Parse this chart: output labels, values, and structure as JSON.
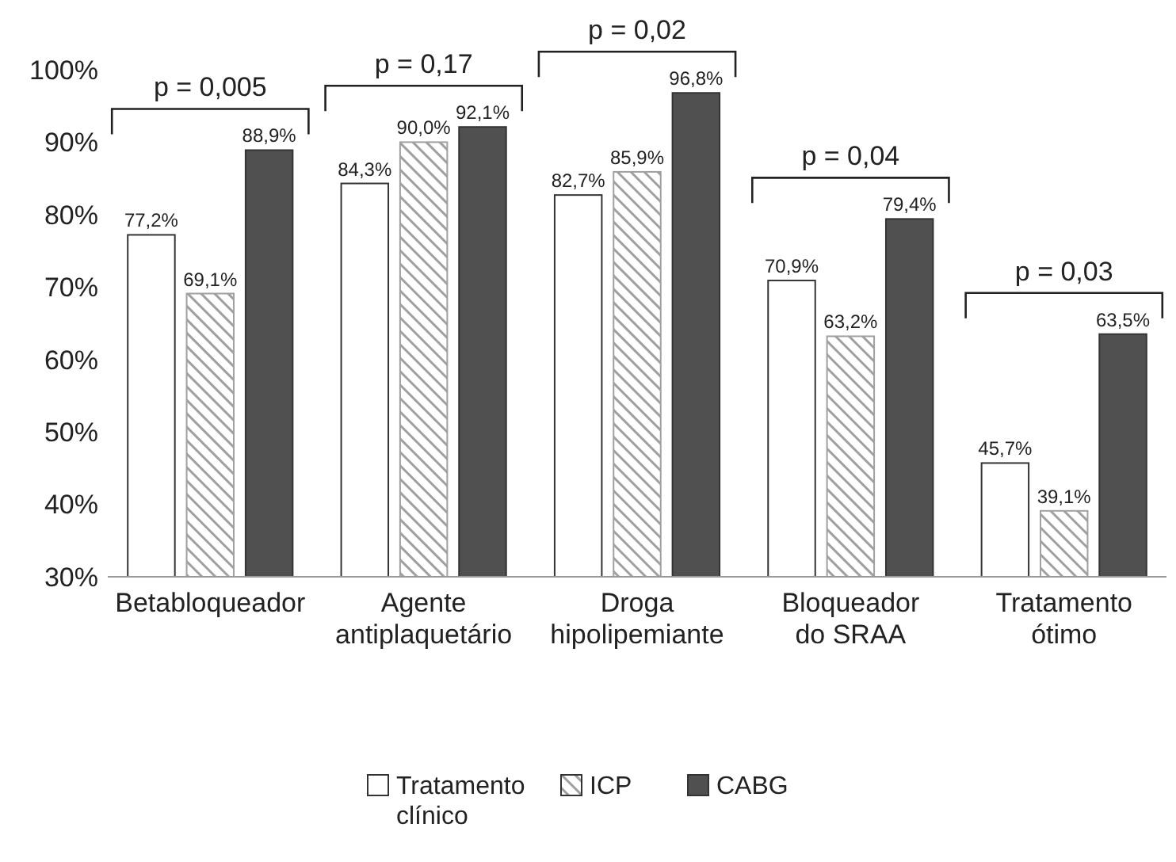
{
  "chart_data": {
    "type": "bar",
    "categories": [
      "Betabloqueador",
      "Agente antiplaquetário",
      "Droga hipolipemiante",
      "Bloqueador do SRAA",
      "Tratamento ótimo"
    ],
    "series": [
      {
        "name": "Tratamento clínico",
        "color": "#ffffff",
        "values": [
          77.2,
          84.3,
          82.7,
          70.9,
          45.7
        ],
        "value_labels": [
          "77,2%",
          "84,3%",
          "82,7%",
          "70,9%",
          "45,7%"
        ]
      },
      {
        "name": "ICP",
        "color": "#a0a0a0",
        "values": [
          69.1,
          90.0,
          85.9,
          63.2,
          39.1
        ],
        "value_labels": [
          "69,1%",
          "90,0%",
          "85,9%",
          "63,2%",
          "39,1%"
        ]
      },
      {
        "name": "CABG",
        "color": "#505050",
        "values": [
          88.9,
          92.1,
          96.8,
          79.4,
          63.5
        ],
        "value_labels": [
          "88,9%",
          "92,1%",
          "96,8%",
          "79,4%",
          "63,5%"
        ]
      }
    ],
    "ylim": [
      30,
      100
    ],
    "yticks": [
      {
        "value": 30,
        "label": "30%"
      },
      {
        "value": 40,
        "label": "40%"
      },
      {
        "value": 50,
        "label": "50%"
      },
      {
        "value": 60,
        "label": "60%"
      },
      {
        "value": 70,
        "label": "70%"
      },
      {
        "value": 80,
        "label": "80%"
      },
      {
        "value": 90,
        "label": "90%"
      },
      {
        "value": 100,
        "label": "100%"
      }
    ],
    "grid": false,
    "legend": "bottom",
    "annotations": [
      "p = 0,005",
      "p = 0,17",
      "p = 0,02",
      "p = 0,04",
      "p = 0,03"
    ]
  }
}
